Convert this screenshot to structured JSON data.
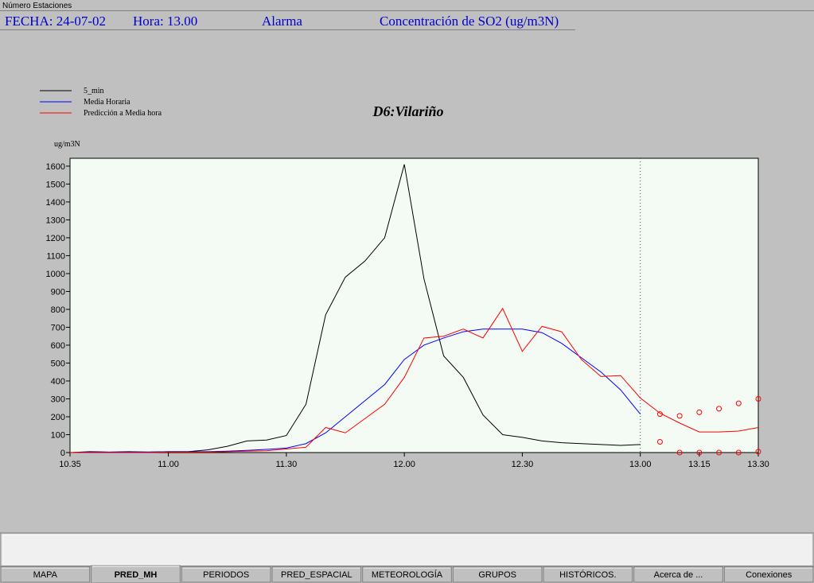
{
  "window_title": "Número Estaciones",
  "header": {
    "fecha": "FECHA: 24-07-02",
    "hora": "Hora: 13.00",
    "alarma": "Alarma",
    "concentracion": "Concentración de SO2 (ug/m3N)"
  },
  "chart_data": {
    "type": "line",
    "title": "D6:Vilariño",
    "y_label": "ug/m3N",
    "x": [
      635,
      640,
      645,
      650,
      655,
      660,
      665,
      670,
      675,
      680,
      685,
      690,
      695,
      700,
      705,
      710,
      715,
      720,
      725,
      730,
      735,
      740,
      745,
      750,
      755,
      760,
      765,
      770,
      775,
      780,
      785,
      790,
      795,
      800,
      805,
      810
    ],
    "series": [
      {
        "name": "5_min",
        "color": "#000000",
        "values": [
          0,
          5,
          3,
          5,
          3,
          5,
          5,
          15,
          35,
          65,
          70,
          95,
          270,
          770,
          980,
          1070,
          1200,
          1610,
          970,
          540,
          420,
          210,
          100,
          85,
          65,
          55,
          50,
          45,
          40,
          45,
          null,
          null,
          null,
          null,
          null,
          null
        ]
      },
      {
        "name": "Media Horaria",
        "color": "#0000ff",
        "values": [
          0,
          2,
          2,
          3,
          3,
          5,
          5,
          5,
          8,
          12,
          18,
          25,
          50,
          110,
          200,
          290,
          380,
          520,
          600,
          640,
          675,
          690,
          690,
          690,
          670,
          610,
          530,
          450,
          350,
          215,
          null,
          null,
          null,
          null,
          null,
          null
        ]
      },
      {
        "name": "Predicción a Media hora",
        "color": "#ff0000",
        "values": [
          0,
          0,
          0,
          0,
          0,
          3,
          3,
          3,
          5,
          8,
          10,
          20,
          30,
          140,
          110,
          190,
          270,
          420,
          640,
          650,
          690,
          640,
          805,
          565,
          705,
          675,
          520,
          425,
          430,
          305,
          220,
          165,
          115,
          115,
          120,
          140
        ]
      },
      {
        "color": "#ff0000",
        "marker": "circle",
        "values": [
          null,
          null,
          null,
          null,
          null,
          null,
          null,
          null,
          null,
          null,
          null,
          null,
          null,
          null,
          null,
          null,
          null,
          null,
          null,
          null,
          null,
          null,
          null,
          null,
          null,
          null,
          null,
          null,
          null,
          null,
          215,
          205,
          225,
          245,
          275,
          300
        ]
      },
      {
        "color": "#ff0000",
        "marker": "circle",
        "values": [
          null,
          null,
          null,
          null,
          null,
          null,
          null,
          null,
          null,
          null,
          null,
          null,
          null,
          null,
          null,
          null,
          null,
          null,
          null,
          null,
          null,
          null,
          null,
          null,
          null,
          null,
          null,
          null,
          null,
          null,
          60,
          0,
          0,
          0,
          0,
          5
        ]
      }
    ],
    "xlim": [
      635,
      810
    ],
    "xticks": [
      {
        "value": 635,
        "label": "10.35"
      },
      {
        "value": 660,
        "label": "11.00"
      },
      {
        "value": 690,
        "label": "11.30"
      },
      {
        "value": 720,
        "label": "12.00"
      },
      {
        "value": 750,
        "label": "12.30"
      },
      {
        "value": 780,
        "label": "13.00"
      },
      {
        "value": 795,
        "label": "13.15"
      },
      {
        "value": 810,
        "label": "13.30"
      }
    ],
    "ylim": [
      0,
      1644
    ],
    "yticks": [
      0,
      100,
      200,
      300,
      400,
      500,
      600,
      700,
      800,
      900,
      1000,
      1100,
      1200,
      1300,
      1400,
      1500,
      1600
    ],
    "vline": 780
  },
  "tabs": [
    "MAPA",
    "PRED_MH",
    "PERIODOS",
    "PRED_ESPACIAL",
    "METEOROLOGÍA",
    "GRUPOS",
    "HISTÓRICOS.",
    "Acerca de ...",
    "Conexiones"
  ],
  "selected_tab": 1
}
